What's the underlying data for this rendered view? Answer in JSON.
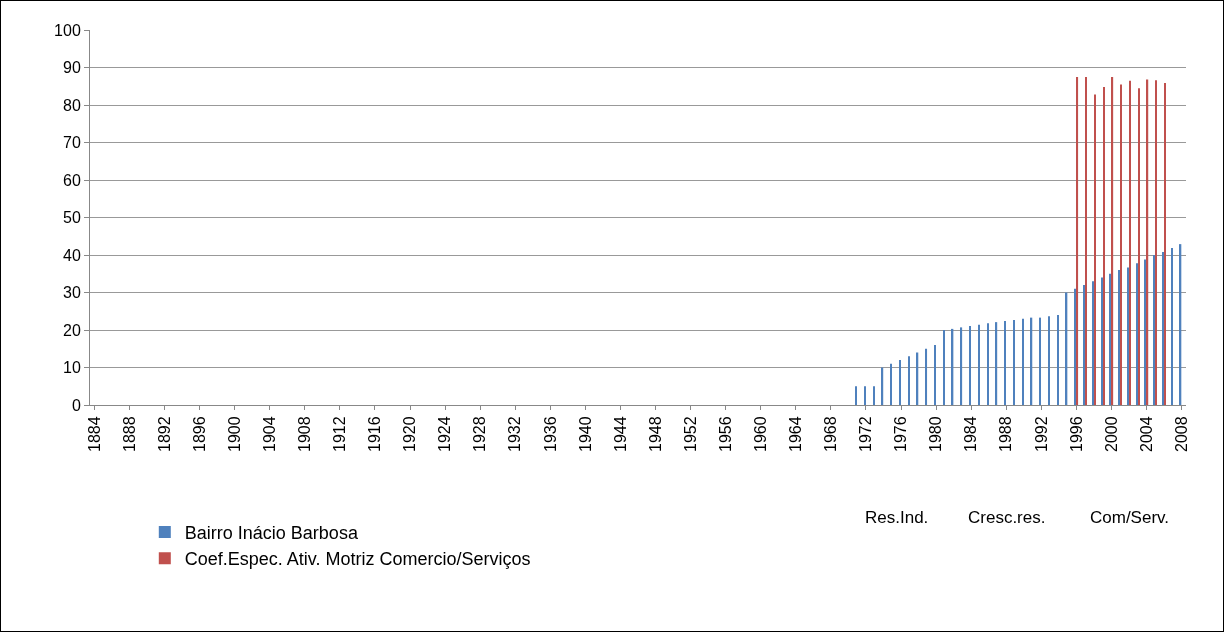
{
  "chart_data": {
    "type": "bar",
    "categories": [
      "1884",
      null,
      null,
      null,
      "1888",
      null,
      null,
      null,
      "1892",
      null,
      null,
      null,
      "1896",
      null,
      null,
      null,
      "1900",
      null,
      null,
      null,
      "1904",
      null,
      null,
      null,
      "1908",
      null,
      null,
      null,
      "1912",
      null,
      null,
      null,
      "1916",
      null,
      null,
      null,
      "1920",
      null,
      null,
      null,
      "1924",
      null,
      null,
      null,
      "1928",
      null,
      null,
      null,
      "1932",
      null,
      null,
      null,
      "1936",
      null,
      null,
      null,
      "1940",
      null,
      null,
      null,
      "1944",
      null,
      null,
      null,
      "1948",
      null,
      null,
      null,
      "1952",
      null,
      null,
      null,
      "1956",
      null,
      null,
      null,
      "1960",
      null,
      null,
      null,
      "1964",
      null,
      null,
      null,
      "1968",
      null,
      null,
      null,
      "1972",
      null,
      null,
      null,
      "1976",
      null,
      null,
      null,
      "1980",
      null,
      null,
      null,
      "1984",
      null,
      null,
      null,
      "1988",
      null,
      null,
      null,
      "1992",
      null,
      null,
      null,
      "1996",
      null,
      null,
      null,
      "2000",
      null,
      null,
      null,
      "2004",
      null,
      null,
      null,
      "2008"
    ],
    "series": [
      {
        "name": "Bairro Inácio Barbosa",
        "color": "#4f81bd",
        "values": [
          null,
          null,
          null,
          null,
          null,
          null,
          null,
          null,
          null,
          null,
          null,
          null,
          null,
          null,
          null,
          null,
          null,
          null,
          null,
          null,
          null,
          null,
          null,
          null,
          null,
          null,
          null,
          null,
          null,
          null,
          null,
          null,
          null,
          null,
          null,
          null,
          null,
          null,
          null,
          null,
          null,
          null,
          null,
          null,
          null,
          null,
          null,
          null,
          null,
          null,
          null,
          null,
          null,
          null,
          null,
          null,
          null,
          null,
          null,
          null,
          null,
          null,
          null,
          null,
          null,
          null,
          null,
          null,
          null,
          null,
          null,
          null,
          null,
          null,
          null,
          null,
          null,
          null,
          null,
          null,
          null,
          null,
          null,
          null,
          null,
          null,
          null,
          5,
          5,
          5,
          10,
          11,
          12,
          13,
          14,
          15,
          16,
          20,
          20.3,
          20.7,
          21.1,
          21.4,
          21.8,
          22.1,
          22.4,
          22.7,
          23,
          23.3,
          23.3,
          23.7,
          24,
          30,
          31,
          32,
          33,
          34,
          35,
          36,
          36.7,
          37.8,
          38.8,
          40,
          40.8,
          41.9,
          42.9
        ]
      },
      {
        "name": "Coef.Espec. Ativ. Motriz Comercio/Serviços",
        "color": "#c0504d",
        "values": [
          null,
          null,
          null,
          null,
          null,
          null,
          null,
          null,
          null,
          null,
          null,
          null,
          null,
          null,
          null,
          null,
          null,
          null,
          null,
          null,
          null,
          null,
          null,
          null,
          null,
          null,
          null,
          null,
          null,
          null,
          null,
          null,
          null,
          null,
          null,
          null,
          null,
          null,
          null,
          null,
          null,
          null,
          null,
          null,
          null,
          null,
          null,
          null,
          null,
          null,
          null,
          null,
          null,
          null,
          null,
          null,
          null,
          null,
          null,
          null,
          null,
          null,
          null,
          null,
          null,
          null,
          null,
          null,
          null,
          null,
          null,
          null,
          null,
          null,
          null,
          null,
          null,
          null,
          null,
          null,
          null,
          null,
          null,
          null,
          null,
          null,
          null,
          null,
          null,
          null,
          null,
          null,
          null,
          null,
          null,
          null,
          null,
          null,
          null,
          null,
          null,
          null,
          null,
          null,
          null,
          null,
          null,
          null,
          null,
          null,
          null,
          null,
          87.5,
          87.5,
          82.8,
          84.8,
          87.5,
          85.5,
          86.5,
          84.5,
          86.8,
          86.6,
          85.9,
          null,
          null
        ]
      }
    ],
    "ylim": [
      0,
      100
    ],
    "yticks": [
      0,
      10,
      20,
      30,
      40,
      50,
      60,
      70,
      80,
      90,
      100
    ],
    "grid": "y",
    "legend": "bottom left",
    "annotations": [
      "Res.Ind.",
      "Cresc.res.",
      "Com/Serv."
    ]
  }
}
